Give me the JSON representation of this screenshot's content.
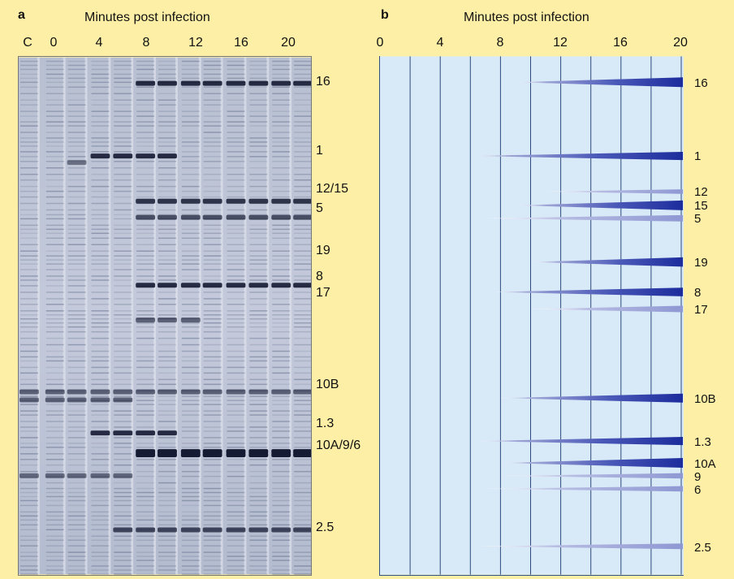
{
  "panel_a": {
    "letter": "a",
    "title": "Minutes post infection",
    "lane_labels": [
      "C",
      "0",
      "4",
      "8",
      "12",
      "16",
      "20"
    ],
    "band_labels": [
      "16",
      "1",
      "12/15",
      "5",
      "19",
      "8",
      "17",
      "10B",
      "1.3",
      "10A/9/6",
      "2.5"
    ]
  },
  "panel_b": {
    "letter": "b",
    "title": "Minutes post infection",
    "ticks": [
      "0",
      "4",
      "8",
      "12",
      "16",
      "20"
    ]
  },
  "chart_data": {
    "type": "timeline",
    "title": "Minutes post infection",
    "xlim": [
      0,
      20
    ],
    "xticks": [
      0,
      4,
      8,
      12,
      16,
      20
    ],
    "series": [
      {
        "name": "16",
        "onset": 9,
        "intensity": 1.0
      },
      {
        "name": "1",
        "onset": 6,
        "intensity": 0.8
      },
      {
        "name": "12",
        "onset": 11,
        "intensity": 0.3
      },
      {
        "name": "15",
        "onset": 9,
        "intensity": 1.0
      },
      {
        "name": "5",
        "onset": 7,
        "intensity": 0.55
      },
      {
        "name": "19",
        "onset": 10,
        "intensity": 0.95
      },
      {
        "name": "8",
        "onset": 7.5,
        "intensity": 0.85
      },
      {
        "name": "17",
        "onset": 10,
        "intensity": 0.55
      },
      {
        "name": "10B",
        "onset": 8,
        "intensity": 0.9
      },
      {
        "name": "1.3",
        "onset": 6.5,
        "intensity": 0.8
      },
      {
        "name": "10A",
        "onset": 8,
        "intensity": 1.0
      },
      {
        "name": "9",
        "onset": 8,
        "intensity": 0.4
      },
      {
        "name": "6",
        "onset": 7,
        "intensity": 0.4
      },
      {
        "name": "2.5",
        "onset": 6.5,
        "intensity": 0.45
      }
    ]
  }
}
